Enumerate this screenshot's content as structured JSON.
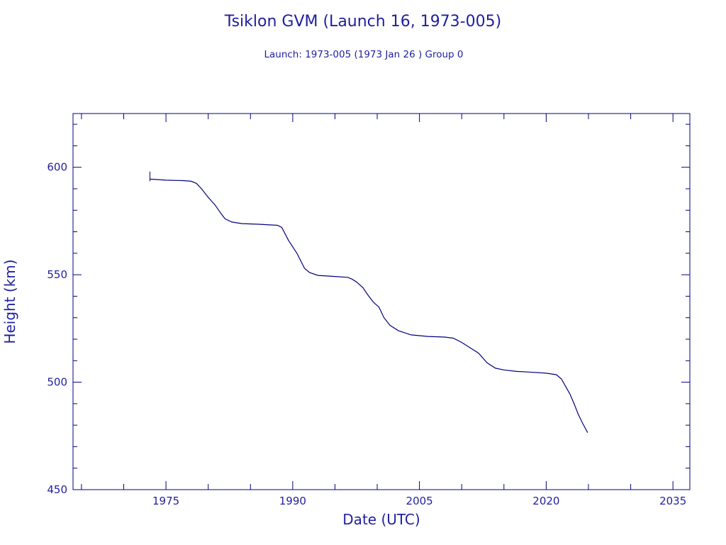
{
  "chart_data": {
    "type": "line",
    "title": "Tsiklon GVM (Launch 16, 1973-005)",
    "subtitle": "Launch: 1973-005  (1973 Jan 26 )  Group 0",
    "xlabel": "Date (UTC)",
    "ylabel": "Height (km)",
    "xlim": [
      1964,
      2037
    ],
    "ylim": [
      450,
      625
    ],
    "xticks": [
      1975,
      1990,
      2005,
      2020,
      2035
    ],
    "yticks": [
      450,
      500,
      550,
      600
    ],
    "grid": false,
    "colors": {
      "line": "#000080",
      "axis": "#000080",
      "text": "#1f1fa0"
    },
    "series": [
      {
        "x": [
          1973.1,
          1975.0,
          1977.0,
          1978.0,
          1978.6,
          1979.2,
          1980.0,
          1980.8,
          1981.5,
          1982.0,
          1982.8,
          1984.0,
          1986.0,
          1988.2,
          1988.7,
          1989.5,
          1990.5,
          1991.4,
          1992.0,
          1993.0,
          1995.0,
          1996.5,
          1997.0,
          1997.6,
          1998.3,
          1999.0,
          1999.6,
          2000.2,
          2000.8,
          2001.5,
          2002.5,
          2004.0,
          2006.0,
          2008.0,
          2009.0,
          2010.0,
          2011.0,
          2012.0,
          2013.0,
          2014.0,
          2015.0,
          2016.5,
          2018.0,
          2020.0,
          2021.2,
          2021.8,
          2022.3,
          2022.8,
          2023.3,
          2023.8,
          2024.3,
          2024.9
        ],
        "y": [
          594.5,
          594.0,
          593.8,
          593.5,
          592.5,
          590.0,
          586.0,
          582.5,
          578.5,
          576.0,
          574.5,
          573.8,
          573.5,
          573.0,
          572.0,
          566.0,
          560.0,
          553.0,
          551.0,
          549.7,
          549.2,
          548.8,
          548.0,
          546.5,
          544.0,
          540.0,
          537.0,
          535.0,
          530.0,
          526.5,
          524.0,
          522.0,
          521.3,
          521.0,
          520.5,
          518.5,
          516.0,
          513.5,
          509.0,
          506.5,
          505.7,
          505.0,
          504.7,
          504.2,
          503.5,
          501.5,
          498.0,
          494.5,
          490.0,
          485.0,
          481.0,
          476.5
        ]
      }
    ],
    "annotations": [
      {
        "type": "error-bar",
        "x": 1973.1,
        "y_low": 593.5,
        "y_high": 598.0
      }
    ]
  }
}
